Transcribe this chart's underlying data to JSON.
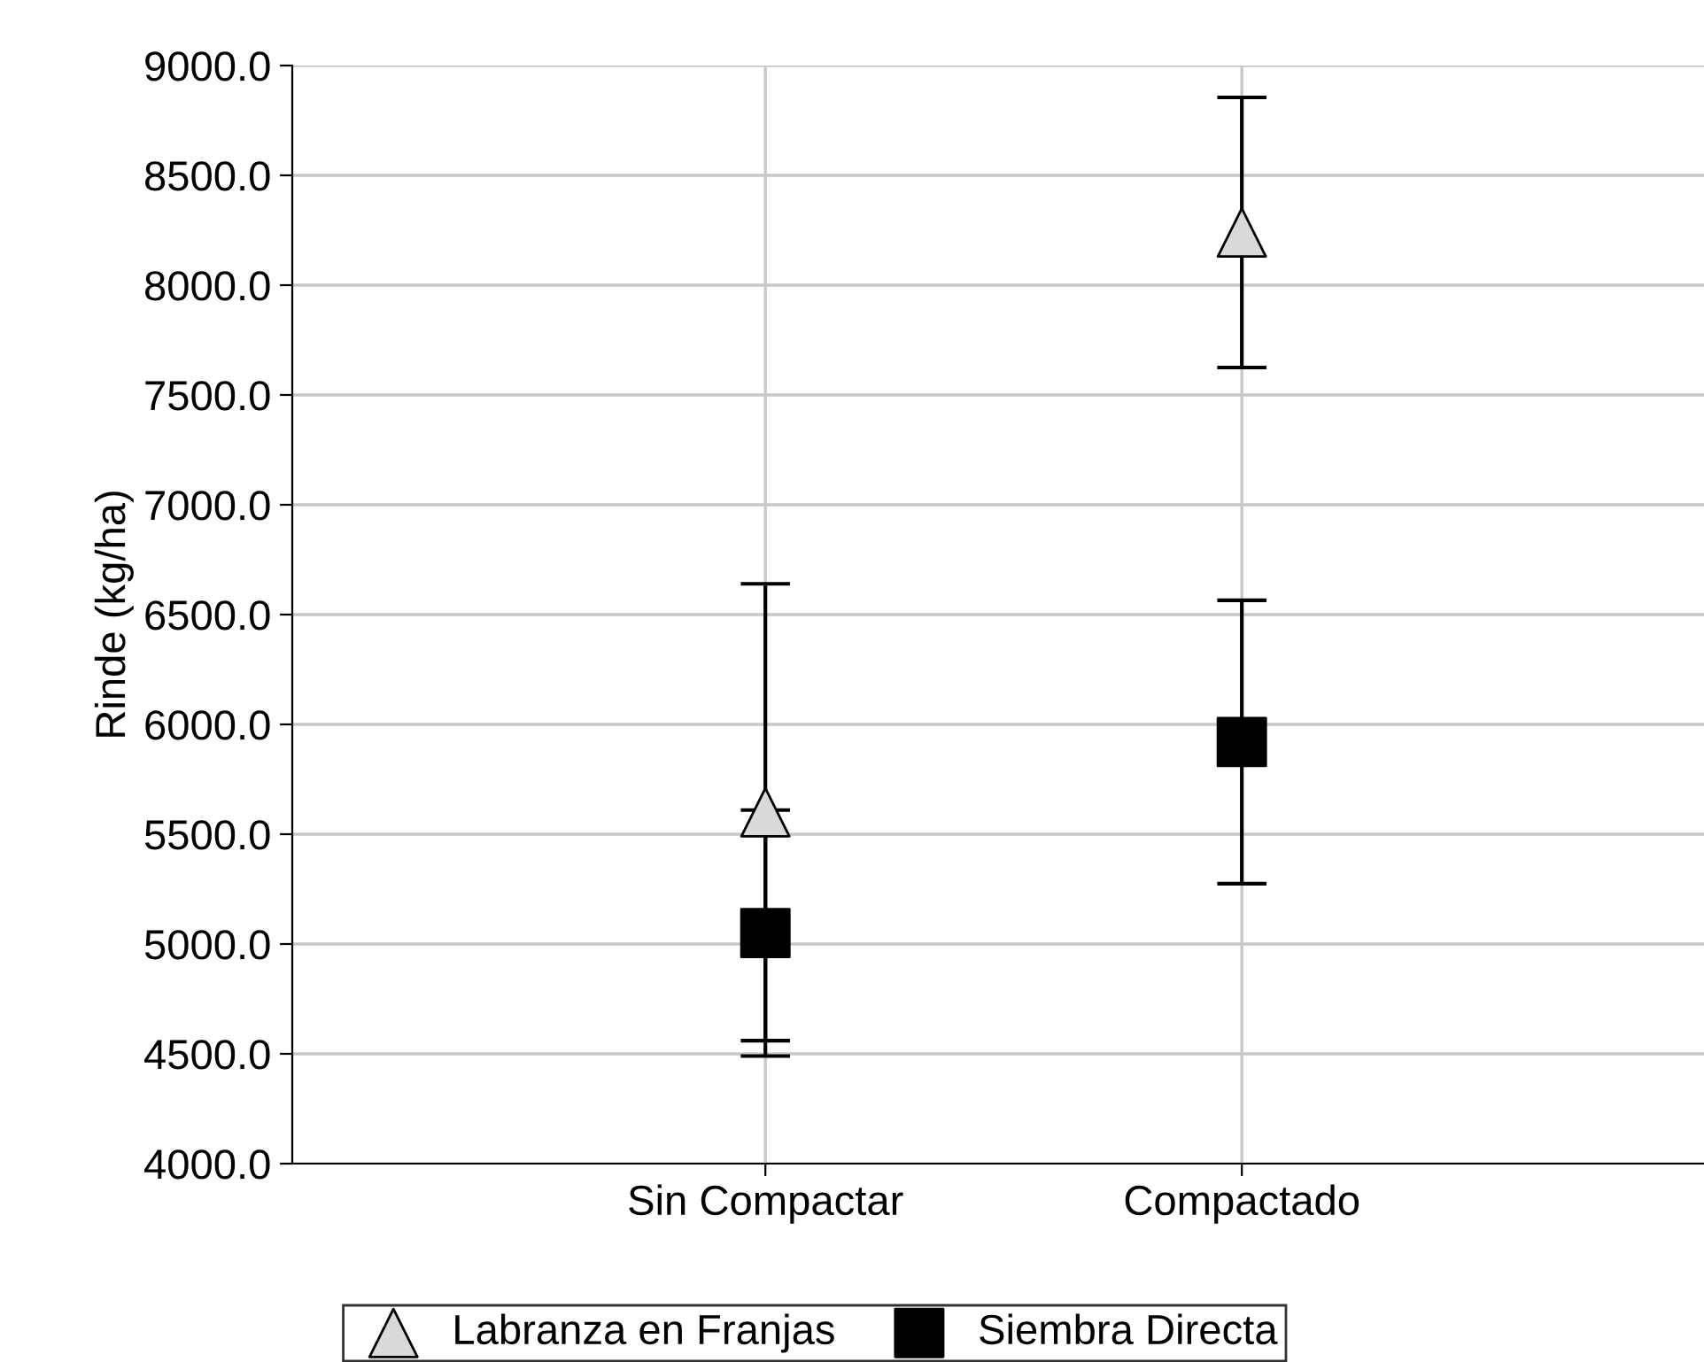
{
  "chart_data": {
    "type": "scatter",
    "ylabel": "Rinde (kg/ha)",
    "categories": [
      "Sin Compactar",
      "Compactado"
    ],
    "series": [
      {
        "name": "Labranza en Franjas",
        "color": "#d9d9d9",
        "marker": "triangle",
        "values": [
          5600,
          8240
        ],
        "errors": [
          1040,
          615
        ]
      },
      {
        "name": "Siembra Directa",
        "color": "#000000",
        "marker": "square",
        "values": [
          5050,
          5920
        ],
        "errors": [
          560,
          645
        ]
      }
    ],
    "ylim": [
      4000,
      9000
    ],
    "yticks": [
      {
        "value": 4000,
        "label": "4000.0"
      },
      {
        "value": 4500,
        "label": "4500.0"
      },
      {
        "value": 5000,
        "label": "5000.0"
      },
      {
        "value": 5500,
        "label": "5500.0"
      },
      {
        "value": 6000,
        "label": "6000.0"
      },
      {
        "value": 6500,
        "label": "6500.0"
      },
      {
        "value": 7000,
        "label": "7000.0"
      },
      {
        "value": 7500,
        "label": "7500.0"
      },
      {
        "value": 8000,
        "label": "8000.0"
      },
      {
        "value": 8500,
        "label": "8500.0"
      },
      {
        "value": 9000,
        "label": "9000.0"
      }
    ],
    "grid": true,
    "legend": "bottom"
  }
}
